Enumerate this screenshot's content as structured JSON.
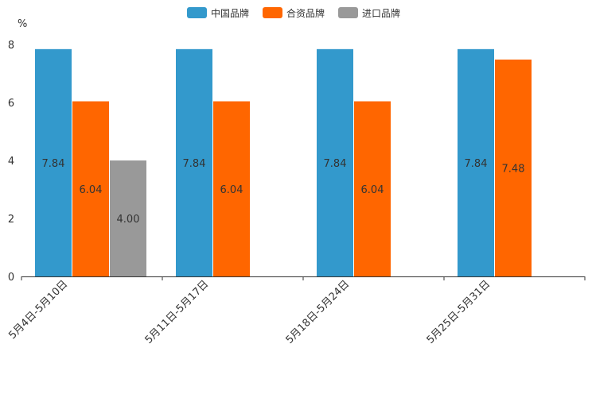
{
  "chart_data": {
    "type": "bar",
    "title": "",
    "xlabel": "",
    "ylabel": "%",
    "ylim": [
      0,
      8
    ],
    "yticks": [
      0,
      2,
      4,
      6,
      8
    ],
    "grid": false,
    "legend_position": "top-center",
    "categories": [
      "5月4日-5月10日",
      "5月11日-5月17日",
      "5月18日-5月24日",
      "5月25日-5月31日"
    ],
    "series": [
      {
        "name": "中国品牌",
        "color": "#3399cc",
        "values": [
          7.84,
          7.84,
          7.84,
          7.84
        ],
        "labels": [
          "7.84",
          "7.84",
          "7.84",
          "7.84"
        ]
      },
      {
        "name": "合资品牌",
        "color": "#ff6600",
        "values": [
          6.04,
          6.04,
          6.04,
          7.48
        ],
        "labels": [
          "6.04",
          "6.04",
          "6.04",
          "7.48"
        ]
      },
      {
        "name": "进口品牌",
        "color": "#999999",
        "values": [
          4.0,
          null,
          null,
          null
        ],
        "labels": [
          "4.00",
          null,
          null,
          null
        ]
      }
    ]
  }
}
